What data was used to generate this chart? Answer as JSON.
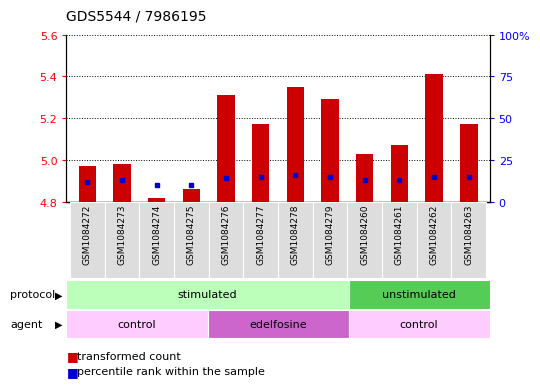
{
  "title": "GDS5544 / 7986195",
  "samples": [
    "GSM1084272",
    "GSM1084273",
    "GSM1084274",
    "GSM1084275",
    "GSM1084276",
    "GSM1084277",
    "GSM1084278",
    "GSM1084279",
    "GSM1084260",
    "GSM1084261",
    "GSM1084262",
    "GSM1084263"
  ],
  "red_values": [
    4.97,
    4.98,
    4.82,
    4.86,
    5.31,
    5.17,
    5.35,
    5.29,
    5.03,
    5.07,
    5.41,
    5.17
  ],
  "blue_values": [
    12,
    13,
    10,
    10,
    14,
    15,
    16,
    15,
    13,
    13,
    15,
    15
  ],
  "y_min": 4.8,
  "y_max": 5.6,
  "y_ticks": [
    4.8,
    5.0,
    5.2,
    5.4,
    5.6
  ],
  "y2_ticks": [
    0,
    25,
    50,
    75,
    100
  ],
  "y2_labels": [
    "0",
    "25",
    "50",
    "75",
    "100%"
  ],
  "protocol_groups": [
    {
      "label": "stimulated",
      "start": 0,
      "end": 7,
      "color": "#bbffbb"
    },
    {
      "label": "unstimulated",
      "start": 8,
      "end": 11,
      "color": "#55cc55"
    }
  ],
  "agent_groups": [
    {
      "label": "control",
      "start": 0,
      "end": 3,
      "color": "#ffccff"
    },
    {
      "label": "edelfosine",
      "start": 4,
      "end": 7,
      "color": "#cc66cc"
    },
    {
      "label": "control",
      "start": 8,
      "end": 11,
      "color": "#ffccff"
    }
  ],
  "bar_color": "#cc0000",
  "blue_color": "#0000cc",
  "bar_width": 0.5,
  "sample_box_color": "#dddddd"
}
